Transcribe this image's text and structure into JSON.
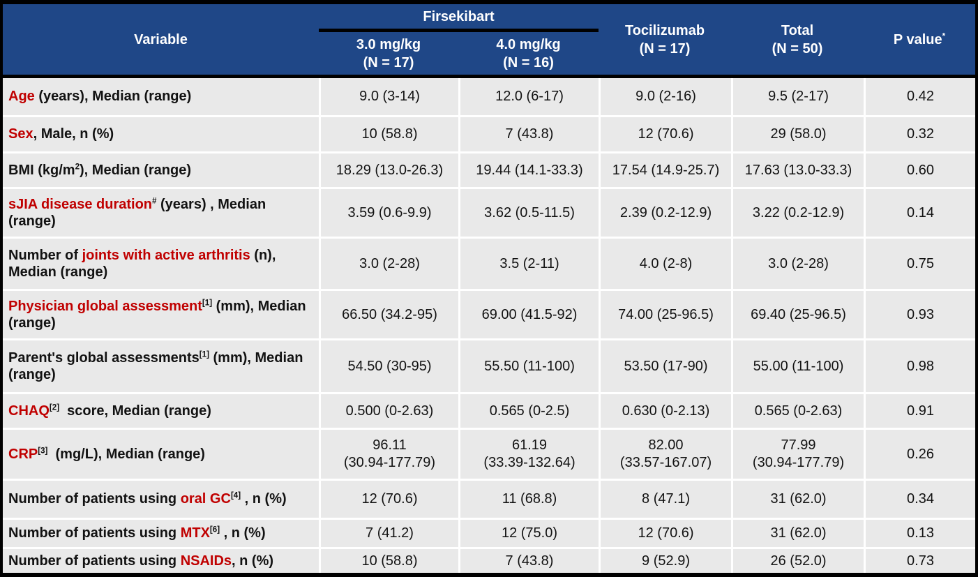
{
  "colors": {
    "header_bg": "#1F4787",
    "row_bg": "#E9E9E9",
    "accent_red": "#C00000",
    "grid": "#FFFFFF",
    "frame": "#000000"
  },
  "table": {
    "header": {
      "variable": [
        {
          "t": "Variable"
        }
      ],
      "group": [
        {
          "t": "Firsekibart"
        }
      ],
      "dose1": [
        {
          "t": "3.0 mg/kg\n(N = 17)"
        }
      ],
      "dose2": [
        {
          "t": "4.0 mg/kg\n(N = 16)"
        }
      ],
      "tocilizumab": [
        {
          "t": "Tocilizumab\n(N = 17)"
        }
      ],
      "total": [
        {
          "t": "Total\n(N = 50)"
        }
      ],
      "pvalue": [
        {
          "t": "P value"
        },
        {
          "t": "*",
          "sup": true
        }
      ]
    },
    "rows": [
      {
        "label": [
          {
            "t": "Age",
            "red": true
          },
          {
            "t": " (years), Median (range)"
          }
        ],
        "values": [
          "9.0 (3-14)",
          "12.0 (6-17)",
          "9.0 (2-16)",
          "9.5 (2-17)",
          "0.42"
        ]
      },
      {
        "label": [
          {
            "t": "Sex",
            "red": true
          },
          {
            "t": ", Male, n (%)"
          }
        ],
        "values": [
          "10 (58.8)",
          "7 (43.8)",
          "12 (70.6)",
          "29 (58.0)",
          "0.32"
        ]
      },
      {
        "label": [
          {
            "t": "BMI (kg/m"
          },
          {
            "t": "2",
            "sup": true
          },
          {
            "t": "), Median (range)"
          }
        ],
        "values": [
          "18.29 (13.0-26.3)",
          "19.44 (14.1-33.3)",
          "17.54 (14.9-25.7)",
          "17.63 (13.0-33.3)",
          "0.60"
        ]
      },
      {
        "label": [
          {
            "t": "sJIA disease duration",
            "red": true
          },
          {
            "t": "#",
            "sup": true
          },
          {
            "t": " (years) , Median (range)"
          }
        ],
        "values": [
          "3.59 (0.6-9.9)",
          "3.62 (0.5-11.5)",
          "2.39 (0.2-12.9)",
          "3.22 (0.2-12.9)",
          "0.14"
        ]
      },
      {
        "label": [
          {
            "t": "Number of "
          },
          {
            "t": "joints with active arthritis",
            "red": true
          },
          {
            "t": " (n), Median (range)"
          }
        ],
        "values": [
          "3.0 (2-28)",
          "3.5 (2-11)",
          "4.0 (2-8)",
          "3.0 (2-28)",
          "0.75"
        ]
      },
      {
        "label": [
          {
            "t": "Physician global assessment",
            "red": true
          },
          {
            "t": "[1]",
            "sup": true
          },
          {
            "t": " (mm), Median (range)"
          }
        ],
        "values": [
          "66.50 (34.2-95)",
          "69.00 (41.5-92)",
          "74.00 (25-96.5)",
          "69.40 (25-96.5)",
          "0.93"
        ]
      },
      {
        "label": [
          {
            "t": "Parent's global assessments"
          },
          {
            "t": "[1]",
            "sup": true
          },
          {
            "t": " (mm), Median (range)"
          }
        ],
        "values": [
          "54.50 (30-95)",
          "55.50 (11-100)",
          "53.50 (17-90)",
          "55.00 (11-100)",
          "0.98"
        ]
      },
      {
        "label": [
          {
            "t": "CHAQ",
            "red": true
          },
          {
            "t": "[2]",
            "sup": true
          },
          {
            "t": "  score, Median (range)"
          }
        ],
        "values": [
          "0.500 (0-2.63)",
          "0.565 (0-2.5)",
          "0.630 (0-2.13)",
          "0.565 (0-2.63)",
          "0.91"
        ]
      },
      {
        "label": [
          {
            "t": "CRP",
            "red": true
          },
          {
            "t": "[3]",
            "sup": true
          },
          {
            "t": "  (mg/L), Median (range)"
          }
        ],
        "values": [
          "96.11\n(30.94-177.79)",
          "61.19\n(33.39-132.64)",
          "82.00\n(33.57-167.07)",
          "77.99\n(30.94-177.79)",
          "0.26"
        ]
      },
      {
        "label": [
          {
            "t": "Number of patients using "
          },
          {
            "t": "oral GC",
            "red": true
          },
          {
            "t": "[4]",
            "sup": true
          },
          {
            "t": " , n (%)"
          }
        ],
        "values": [
          "12 (70.6)",
          "11 (68.8)",
          "8 (47.1)",
          "31 (62.0)",
          "0.34"
        ]
      },
      {
        "label": [
          {
            "t": "Number of patients using "
          },
          {
            "t": "MTX",
            "red": true
          },
          {
            "t": "[6]",
            "sup": true
          },
          {
            "t": " , n (%)"
          }
        ],
        "values": [
          "7 (41.2)",
          "12 (75.0)",
          "12 (70.6)",
          "31 (62.0)",
          "0.13"
        ]
      },
      {
        "label": [
          {
            "t": "Number of patients using "
          },
          {
            "t": "NSAIDs",
            "red": true
          },
          {
            "t": ", n (%)"
          }
        ],
        "values": [
          "10 (58.8)",
          "7 (43.8)",
          "9 (52.9)",
          "26 (52.0)",
          "0.73"
        ]
      }
    ]
  },
  "chart_data": {
    "type": "table",
    "title": "Baseline characteristics: Firsekibart vs Tocilizumab",
    "columns": [
      "Variable",
      "Firsekibart 3.0 mg/kg (N = 17)",
      "Firsekibart 4.0 mg/kg (N = 16)",
      "Tocilizumab (N = 17)",
      "Total (N = 50)",
      "P value*"
    ],
    "rows": [
      [
        "Age (years), Median (range)",
        "9.0 (3-14)",
        "12.0 (6-17)",
        "9.0 (2-16)",
        "9.5 (2-17)",
        "0.42"
      ],
      [
        "Sex, Male, n (%)",
        "10 (58.8)",
        "7 (43.8)",
        "12 (70.6)",
        "29 (58.0)",
        "0.32"
      ],
      [
        "BMI (kg/m2), Median (range)",
        "18.29 (13.0-26.3)",
        "19.44 (14.1-33.3)",
        "17.54 (14.9-25.7)",
        "17.63 (13.0-33.3)",
        "0.60"
      ],
      [
        "sJIA disease duration# (years) , Median (range)",
        "3.59 (0.6-9.9)",
        "3.62 (0.5-11.5)",
        "2.39 (0.2-12.9)",
        "3.22 (0.2-12.9)",
        "0.14"
      ],
      [
        "Number of joints with active arthritis (n), Median (range)",
        "3.0 (2-28)",
        "3.5 (2-11)",
        "4.0 (2-8)",
        "3.0 (2-28)",
        "0.75"
      ],
      [
        "Physician global assessment[1] (mm), Median (range)",
        "66.50 (34.2-95)",
        "69.00 (41.5-92)",
        "74.00 (25-96.5)",
        "69.40 (25-96.5)",
        "0.93"
      ],
      [
        "Parent's global assessments[1] (mm), Median (range)",
        "54.50 (30-95)",
        "55.50 (11-100)",
        "53.50 (17-90)",
        "55.00 (11-100)",
        "0.98"
      ],
      [
        "CHAQ[2] score, Median (range)",
        "0.500 (0-2.63)",
        "0.565 (0-2.5)",
        "0.630 (0-2.13)",
        "0.565 (0-2.63)",
        "0.91"
      ],
      [
        "CRP[3] (mg/L), Median (range)",
        "96.11 (30.94-177.79)",
        "61.19 (33.39-132.64)",
        "82.00 (33.57-167.07)",
        "77.99 (30.94-177.79)",
        "0.26"
      ],
      [
        "Number of patients using oral GC[4] , n (%)",
        "12 (70.6)",
        "11 (68.8)",
        "8 (47.1)",
        "31 (62.0)",
        "0.34"
      ],
      [
        "Number of patients using MTX[6] , n (%)",
        "7 (41.2)",
        "12 (75.0)",
        "12 (70.6)",
        "31 (62.0)",
        "0.13"
      ],
      [
        "Number of patients using NSAIDs, n (%)",
        "10 (58.8)",
        "7 (43.8)",
        "9 (52.9)",
        "26 (52.0)",
        "0.73"
      ]
    ]
  }
}
